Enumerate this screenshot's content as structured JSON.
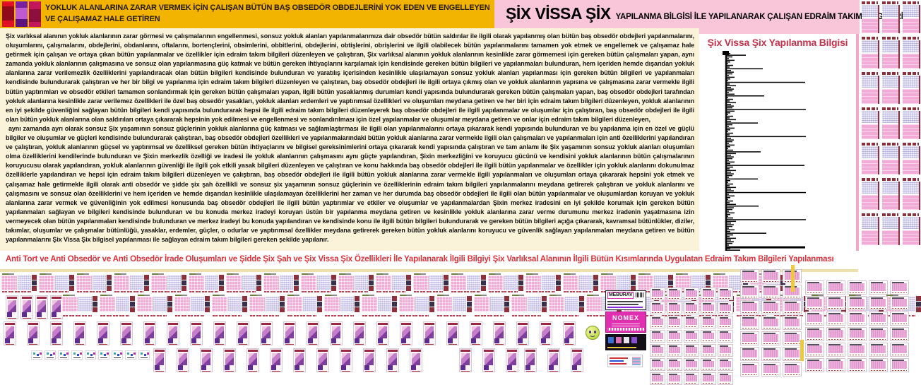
{
  "header": {
    "banner_line1": "YOKLUK ALANLARINA ZARAR VERMEK İÇİN ÇALIŞAN BÜTÜN BAŞ OBSEDÖR OBDEJLERİNİ YOK EDEN VE ENGELLEYEN",
    "banner_line2": "VE ÇALIŞAMAZ HALE GETİREN",
    "title": "ŞİX VİSSA ŞİX",
    "subtitle": "YAPILANMA BİLGİSİ İLE YAPILANARAK ÇALIŞAN EDRAİM TAKIM BİLGİLERİ"
  },
  "body": {
    "paragraph1": "Şix varlıksal alanının yokluk alanlarının zarar görmesi ve çalışmalarının engellenmesi, sonsuz yokluk alanları yapılanmalarımıza dair obsedör bütün saldırılar ile ilgili olarak yapılanmış olan bütün baş obsedör obdejleri yapılanmalarını, oluşumlarını, çalışmalarını, obdejlerini, obdanlarını, oftalarını, bortençlerini, obsimlerini, obbitlerini, obdejlerini, obtişlerini, obrişlerini ve ilgili olabilecek bütün yapılanmalarını tamamen yok etmek ve engellemek ve çalışamaz hale getirmek için çalışan ve ortaya çıkan bütün yapılanmalar ve özellikler için edraim takım bilgileri düzenleyen ve çalıştıran, Şix varlıksal alanının yokluk alanlarının kesinlikle zarar görmemesi için gereken bütün çalışmaları yapan, aynı zamanda yokluk alanlarının çalışmasına ve sonsuz olan yapılanmasına güç katmak ve bütün gereken ihtiyaçlarını karşılamak için kendisinde gereken bütün bilgileri ve yapılanmaları bulunduran, hem içeriden hemde dışarıdan yokluk alanlarına zarar verilemezlik özelliklerini yapılandıracak olan bütün bilgileri kendisinde bulunduran ve yaratılış içerisinden kesinlikle ulaşılamayan sonsuz yokluk alanları yapılanması için gereken bütün bilgileri ve yapılanmaları kendisinde bulundurarak çalıştıran ve her bir bilgi ve yapılanma için edraim takım bilgileri düzenleyen ve çalıştıran, baş obsedör obdejleri ile ilgili ortaya çıkmış olan ve yokluk alanlarının yapısına ve çalışmasına zarar vermekle ilgili bütün yaptırımları ve obsedör etkileri tamamen sonlandırmak için gereken bütün çalışmaları yapan, ilgili bütün yasaklanmış durumları kendi yapısında bulundurarak gereken bütün çalışmaları yapan, baş obsedör obdejleri tarafından yokluk alanlarına kesinlikle zarar verilemez özellikleri ile özel baş obsedör yasakları, yokluk alanları erdemleri ve yaptırımsal özellikleri ve oluşumları meydana getiren ve her biri için edraim takım bilgileri düzenleyen, yokluk alanlarının en iyi şekilde güvenliğini sağlayan bütün bilgileri kendi yapısında bulundurarak hepsi ile ilgili edraim takım bilgileri düzenleyerek baş obsedör obdejleri ile ilgili yapılanmalar ve oluşumlar için çalıştıran, baş obsedör obdejleri ile ilgili olan bütün yokluk alanlarına olan saldırıları ortaya çıkararak hepsinin yok edilmesi ve engellenmesi ve sonlandırılması için özel yapılanmalar ve oluşumlar meydana getiren ve onlar için edraim takım bilgileri düzenleyen,",
    "paragraph2": "aynı zamanda ayrı olarak sonsuz Şix yaşamının sonsuz güçlerinin yokluk alanlarına güç katması ve sağlamlaştırması ile ilgili olan yapılanmalarını ortaya çıkararak kendi yapısında bulunduran ve bu yapılanma için en özel ve güçlü bilgiler ve oluşumlar ve güçleri kendisinde bulundurarak çalıştıran, baş obsedör obdejleri özellikleri ve yapılanmalarındaki bütün yokluk alanlarına zarar vermekle ilgili olan çalışmaları ve yapılanmaları için anti özelliklerini yapılandıran ve çalıştıran, yokluk alanlarının güçsel ve yaptırımsal ve özelliksel gereken bütün ihtiyaçlarını ve bilgisel gereksinimlerini ortaya çıkararak kendi yapısında çalıştıran ve tam anlamı ile Şix yaşamının sonsuz yokluk alanları oluşumları olma özelliklerini kendilerinde bulunduran ve Şixin merkezlik özelliği ve iradesi ile yokluk alanlarının çalışmasını aynı güçte yapılandıran, Şixin merkezliğini ve koruyucu gücünü ve kendisini yokluk alanlarının bütün çalışmalarının koruyucusu olarak yapılandıran, yokluk alanlarının güvenliği ile ilgili çok etkili yasak bilgileri düzenleyen ve çalıştıran ve konu hakkında baş obsedör obdejleri ile ilgili bütün yapılanmalar ve özellikler için yokluk alanlarını dokunulmaz özelliklerle yapılandıran ve hepsi için edraim takım bilgileri düzenleyen ve çalıştıran, baş obsedör obdejleri ile ilgili bütün yokluk alanlarına zarar vermekle ilgili yapılanmaları ve oluşumları ortaya çıkararak hepsini yok etmek ve çalışamaz hale getirmekle ilgili olarak anti obsedör ve şidde şix şah özellikli ve sonsuz şix yaşamının sonsuz güçlerinin ve özelliklerinin edraim takım bilgileri yapılanmalarını meydana getirerek çalıştıran ve yokluk alanlarını ve çalışmasını ve sonsuz olan özelliklerini ve hem içeriden ve hemde dışarıdan kesinlikle ulaşılamayan özelliklerini her zaman ve her durumda baş obsedör obdejleri ile ilgili olan bütün yapılanmalar ve oluşumlardan koruyan ve yokluk alanlarına zarar vermek ve güvenliğinin yok edilmesi konusunda baş obsedör obdejleri ile ilgili bütün yaptırımlar ve etkiler ve oluşumlar ve yapılanmalardan Şixin merkez iradesini en iyi şekilde korumak için gereken bütün yapılanmaları sağlayan ve bilgileri kendisinde bulunduran ve bu konuda merkez iradeyi koruyan üstün bir yapılanma meydana getiren ve kesinlikle yokluk alanlarına zarar verme durumunu merkez iradenin yaşatmasına izin vermeyecek olan bütün yapılanmaları kendisinde bulunduran ve merkez iradeyi bu konuda yapılandıran ve kendisinde konu ile ilgili bütün bilgileri bulundurarak ve gereken bütün bilgileri açığa çıkararak, kavramsal bütünlükler, diziler, takımlar, oluşumlar ve çalışmalar bütünlüğü, yasaklar, erdemler, güçler, o odurlar ve yaptırımsal özellikler meydana getirerek gereken bütün yokluk alanlarını koruyucu ve güvenlik sağlayan yapılanmaları meydana getiren ve bütün yapılanmalarını Şix Vissa Şix bilgisel yapılanması ile sağlayan edraim takım bilgileri gereken şekilde yapılanır."
  },
  "chart": {
    "title": "Şix Vissa Şix Yapılanma Bilgisi"
  },
  "chart_data": {
    "type": "bar",
    "orientation": "horizontal",
    "title": "Şix Vissa Şix Yapılanma Bilgisi",
    "xlabel": "",
    "ylabel": "",
    "tick_labels_visible": false,
    "grid": false,
    "legend": null,
    "bar_color": "#000000",
    "xlim": [
      0,
      115
    ],
    "n_points": 117,
    "values": [
      6,
      28,
      9,
      4,
      12,
      6,
      3,
      10,
      5,
      52,
      7,
      11,
      9,
      4,
      12,
      6,
      3,
      112,
      5,
      14,
      7,
      11,
      9,
      4,
      12,
      54,
      3,
      10,
      5,
      14,
      7,
      11,
      9,
      113,
      12,
      6,
      3,
      10,
      5,
      14,
      7,
      45,
      9,
      4,
      12,
      6,
      3,
      10,
      5,
      113,
      7,
      11,
      9,
      4,
      12,
      6,
      3,
      10,
      49,
      14,
      7,
      11,
      9,
      4,
      12,
      6,
      111,
      10,
      5,
      14,
      7,
      11,
      9,
      4,
      45,
      6,
      3,
      10,
      5,
      14,
      7,
      11,
      113,
      4,
      12,
      6,
      3,
      10,
      5,
      14,
      46,
      11,
      9,
      4,
      12,
      6,
      3,
      10,
      113,
      14,
      7,
      11,
      9,
      4,
      12,
      6,
      57,
      10,
      5,
      14,
      7,
      11,
      9,
      4,
      112,
      6,
      20
    ]
  },
  "footer_banner": {
    "text": "Anti Tort ve Anti Obsedör ve Anti Obsedör İrade Oluşumları ve Şidde Şix Şah ve Şix Vissa Şix Özellikleri İle Yapılanarak İlgili Bilgiyi Şix Varlıksal Alanının İlgili Bütün Kısımlarında Uygulatan Edraim Takım Bilgileri Yapılanması"
  },
  "cards": {
    "meburav_title": "MEBURAV",
    "nomex_title": "NOMEX"
  },
  "icons": {
    "smiley": "smiley-face-icon"
  },
  "collage": {
    "wide_card_row1_count": 21,
    "wide_card_row2_count": 23,
    "portrait_row2_count": 4,
    "cover_row3_count": 25,
    "mini_chart_count": 9,
    "cover_row4_runs": [
      12,
      3,
      3
    ],
    "label_grid": {
      "cols": 5,
      "rows": 7
    },
    "label_group1": {
      "cols": 3,
      "rows": 7
    },
    "label_group2": {
      "cols": 5,
      "rows": 6
    },
    "doc_columns": {
      "cols": 3,
      "rows": 7
    }
  },
  "colors": {
    "header_gold": "#F2B400",
    "header_pink": "#F8C6D8",
    "body_cream": "#FBF3D9",
    "banner_red": "#E03038",
    "chart_title_red": "#C5304A",
    "accent_magenta": "#E02FB0",
    "thumb_pink": "#F2ABD6",
    "thumb_lavender": "#D8D3EF",
    "thumb_maroon": "#8E2F3C"
  }
}
